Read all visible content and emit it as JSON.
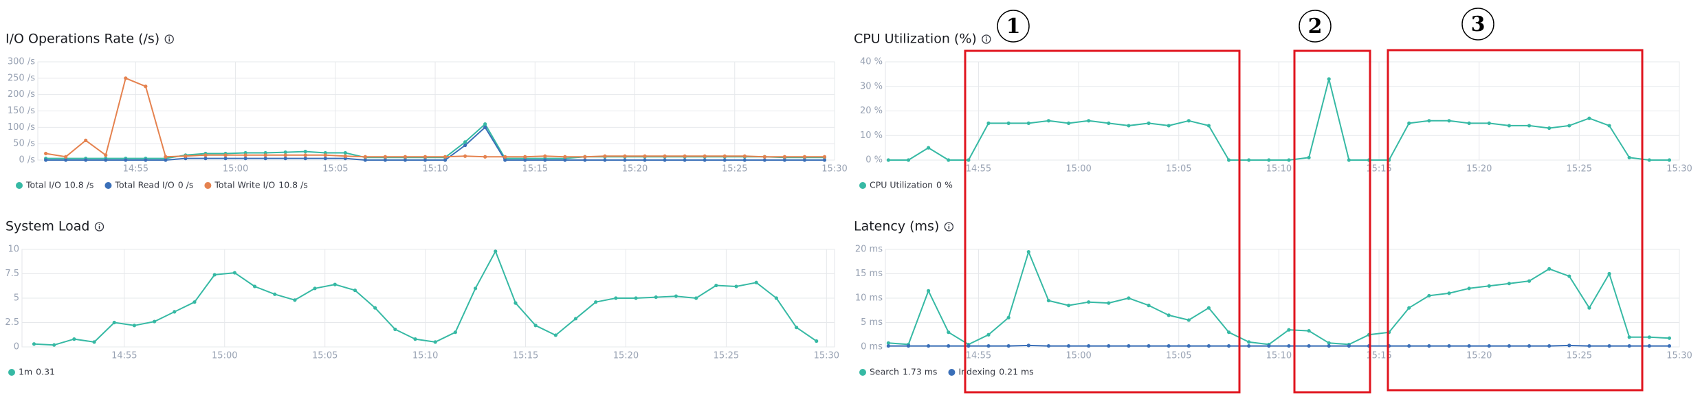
{
  "chart_data": [
    {
      "type": "line",
      "title": "I/O Operations Rate (/s)",
      "x": [
        50.5,
        51.5,
        52.5,
        53.5,
        54.5,
        55.5,
        56.5,
        57.5,
        58.5,
        59.5,
        60.5,
        61.5,
        62.5,
        63.5,
        64.5,
        65.5,
        66.5,
        67.5,
        68.5,
        69.5,
        70.5,
        71.5,
        72.5,
        73.5,
        74.5,
        75.5,
        76.5,
        77.5,
        78.5,
        79.5,
        80.5,
        81.5,
        82.5,
        83.5,
        84.5,
        85.5,
        86.5,
        87.5,
        88.5,
        89.5
      ],
      "xlim": [
        50.1,
        90
      ],
      "xticks": [
        {
          "value": 55,
          "label": "14:55"
        },
        {
          "value": 60,
          "label": "15:00"
        },
        {
          "value": 65,
          "label": "15:05"
        },
        {
          "value": 70,
          "label": "15:10"
        },
        {
          "value": 75,
          "label": "15:15"
        },
        {
          "value": 80,
          "label": "15:20"
        },
        {
          "value": 85,
          "label": "15:25"
        },
        {
          "value": 90,
          "label": "15:30"
        }
      ],
      "ylim": [
        0,
        300
      ],
      "yticks": [
        {
          "value": 0,
          "label": "0 /s"
        },
        {
          "value": 50,
          "label": "50 /s"
        },
        {
          "value": 100,
          "label": "100 /s"
        },
        {
          "value": 150,
          "label": "150 /s"
        },
        {
          "value": 200,
          "label": "200 /s"
        },
        {
          "value": 250,
          "label": "250 /s"
        },
        {
          "value": 300,
          "label": "300 /s"
        }
      ],
      "grid": true,
      "series": [
        {
          "name": "Total I/O",
          "legend_value": "10.8 /s",
          "color": "#36b9a4",
          "values": [
            5,
            5,
            5,
            5,
            5,
            5,
            5,
            15,
            20,
            20,
            22,
            22,
            24,
            26,
            22,
            22,
            8,
            8,
            8,
            8,
            8,
            55,
            110,
            5,
            5,
            5,
            5,
            10,
            10,
            10,
            10,
            10,
            10,
            10,
            10,
            10,
            10,
            8,
            8,
            8
          ]
        },
        {
          "name": "Total Read I/O",
          "legend_value": "0 /s",
          "color": "#3a6fb8",
          "values": [
            0,
            0,
            0,
            0,
            0,
            0,
            0,
            5,
            5,
            5,
            5,
            5,
            5,
            5,
            5,
            5,
            0,
            0,
            0,
            0,
            0,
            45,
            100,
            0,
            0,
            0,
            0,
            0,
            0,
            0,
            0,
            0,
            0,
            0,
            0,
            0,
            0,
            0,
            0,
            0
          ]
        },
        {
          "name": "Total Write I/O",
          "legend_value": "10.8 /s",
          "color": "#e5824f",
          "values": [
            20,
            10,
            60,
            15,
            250,
            225,
            10,
            12,
            15,
            15,
            15,
            15,
            15,
            15,
            15,
            12,
            10,
            10,
            10,
            10,
            10,
            12,
            10,
            10,
            10,
            12,
            10,
            10,
            12,
            12,
            12,
            12,
            12,
            12,
            12,
            12,
            10,
            10,
            10,
            10
          ]
        }
      ]
    },
    {
      "type": "line",
      "title": "CPU Utilization (%)",
      "x": [
        50.5,
        51.5,
        52.5,
        53.5,
        54.5,
        55.5,
        56.5,
        57.5,
        58.5,
        59.5,
        60.5,
        61.5,
        62.5,
        63.5,
        64.5,
        65.5,
        66.5,
        67.5,
        68.5,
        69.5,
        70.5,
        71.5,
        72.5,
        73.5,
        74.5,
        75.5,
        76.5,
        77.5,
        78.5,
        79.5,
        80.5,
        81.5,
        82.5,
        83.5,
        84.5,
        85.5,
        86.5,
        87.5,
        88.5,
        89.5
      ],
      "xlim": [
        50.35,
        90
      ],
      "xticks": [
        {
          "value": 55,
          "label": "14:55"
        },
        {
          "value": 60,
          "label": "15:00"
        },
        {
          "value": 65,
          "label": "15:05"
        },
        {
          "value": 70,
          "label": "15:10"
        },
        {
          "value": 75,
          "label": "15:15"
        },
        {
          "value": 80,
          "label": "15:20"
        },
        {
          "value": 85,
          "label": "15:25"
        },
        {
          "value": 90,
          "label": "15:30"
        }
      ],
      "ylim": [
        0,
        40
      ],
      "yticks": [
        {
          "value": 0,
          "label": "0 %"
        },
        {
          "value": 10,
          "label": "10 %"
        },
        {
          "value": 20,
          "label": "20 %"
        },
        {
          "value": 30,
          "label": "30 %"
        },
        {
          "value": 40,
          "label": "40 %"
        }
      ],
      "grid": true,
      "series": [
        {
          "name": "CPU Utilization",
          "legend_value": "0 %",
          "color": "#36b9a4",
          "values": [
            0,
            0,
            5,
            0,
            0,
            15,
            15,
            15,
            16,
            15,
            16,
            15,
            14,
            15,
            14,
            16,
            14,
            0,
            0,
            0,
            0,
            1,
            33,
            0,
            0,
            0,
            15,
            16,
            16,
            15,
            15,
            14,
            14,
            13,
            14,
            17,
            14,
            1,
            0,
            0
          ]
        }
      ]
    },
    {
      "type": "line",
      "title": "System Load",
      "x": [
        50.5,
        51.5,
        52.5,
        53.5,
        54.5,
        55.5,
        56.5,
        57.5,
        58.5,
        59.5,
        60.5,
        61.5,
        62.5,
        63.5,
        64.5,
        65.5,
        66.5,
        67.5,
        68.5,
        69.5,
        70.5,
        71.5,
        72.5,
        73.5,
        74.5,
        75.5,
        76.5,
        77.5,
        78.5,
        79.5,
        80.5,
        81.5,
        82.5,
        83.5,
        84.5,
        85.5,
        86.5,
        87.5,
        88.5,
        89.5
      ],
      "xlim": [
        49.9,
        90.4
      ],
      "xticks": [
        {
          "value": 55,
          "label": "14:55"
        },
        {
          "value": 60,
          "label": "15:00"
        },
        {
          "value": 65,
          "label": "15:05"
        },
        {
          "value": 70,
          "label": "15:10"
        },
        {
          "value": 75,
          "label": "15:15"
        },
        {
          "value": 80,
          "label": "15:20"
        },
        {
          "value": 85,
          "label": "15:25"
        },
        {
          "value": 90,
          "label": "15:30"
        }
      ],
      "ylim": [
        0,
        10
      ],
      "yticks": [
        0,
        2.5,
        5,
        7.5,
        10
      ],
      "grid": true,
      "series": [
        {
          "name": "1m",
          "legend_value": "0.31",
          "color": "#36b9a4",
          "values": [
            0.3,
            0.2,
            0.8,
            0.5,
            2.5,
            2.2,
            2.6,
            3.6,
            4.6,
            7.4,
            7.6,
            6.2,
            5.4,
            4.8,
            6.0,
            6.4,
            5.8,
            4.0,
            1.8,
            0.8,
            0.5,
            1.5,
            6.0,
            9.8,
            4.5,
            2.2,
            1.2,
            2.9,
            4.6,
            5.0,
            5.0,
            5.1,
            5.2,
            5.0,
            6.3,
            6.2,
            6.6,
            5.0,
            2.0,
            0.6
          ]
        }
      ]
    },
    {
      "type": "line",
      "title": "Latency (ms)",
      "x": [
        50.5,
        51.5,
        52.5,
        53.5,
        54.5,
        55.5,
        56.5,
        57.5,
        58.5,
        59.5,
        60.5,
        61.5,
        62.5,
        63.5,
        64.5,
        65.5,
        66.5,
        67.5,
        68.5,
        69.5,
        70.5,
        71.5,
        72.5,
        73.5,
        74.5,
        75.5,
        76.5,
        77.5,
        78.5,
        79.5,
        80.5,
        81.5,
        82.5,
        83.5,
        84.5,
        85.5,
        86.5,
        87.5,
        88.5,
        89.5
      ],
      "xlim": [
        50.35,
        90
      ],
      "xticks": [
        {
          "value": 55,
          "label": "14:55"
        },
        {
          "value": 60,
          "label": "15:00"
        },
        {
          "value": 65,
          "label": "15:05"
        },
        {
          "value": 70,
          "label": "15:10"
        },
        {
          "value": 75,
          "label": "15:15"
        },
        {
          "value": 80,
          "label": "15:20"
        },
        {
          "value": 85,
          "label": "15:25"
        },
        {
          "value": 90,
          "label": "15:30"
        }
      ],
      "ylim": [
        0,
        20
      ],
      "yticks": [
        {
          "value": 0,
          "label": "0 ms"
        },
        {
          "value": 5,
          "label": "5 ms"
        },
        {
          "value": 10,
          "label": "10 ms"
        },
        {
          "value": 15,
          "label": "15 ms"
        },
        {
          "value": 20,
          "label": "20 ms"
        }
      ],
      "grid": true,
      "series": [
        {
          "name": "Search",
          "legend_value": "1.73 ms",
          "color": "#36b9a4",
          "values": [
            0.8,
            0.5,
            11.5,
            3,
            0.5,
            2.5,
            6,
            19.5,
            9.5,
            8.5,
            9.2,
            9,
            10,
            8.5,
            6.5,
            5.5,
            8,
            3,
            1,
            0.5,
            3.5,
            3.3,
            0.8,
            0.5,
            2.5,
            3,
            8,
            10.5,
            11,
            12,
            12.5,
            13,
            13.5,
            16,
            14.5,
            8,
            15,
            2,
            2,
            1.8
          ]
        },
        {
          "name": "Indexing",
          "legend_value": "0.21 ms",
          "color": "#3a6fb8",
          "values": [
            0.2,
            0.2,
            0.2,
            0.2,
            0.2,
            0.2,
            0.2,
            0.3,
            0.2,
            0.2,
            0.2,
            0.2,
            0.2,
            0.2,
            0.2,
            0.2,
            0.2,
            0.2,
            0.2,
            0.2,
            0.2,
            0.2,
            0.2,
            0.2,
            0.2,
            0.2,
            0.2,
            0.2,
            0.2,
            0.2,
            0.2,
            0.2,
            0.2,
            0.2,
            0.3,
            0.2,
            0.2,
            0.2,
            0.2,
            0.2
          ]
        }
      ]
    }
  ],
  "annotations": [
    "1",
    "2",
    "3"
  ]
}
